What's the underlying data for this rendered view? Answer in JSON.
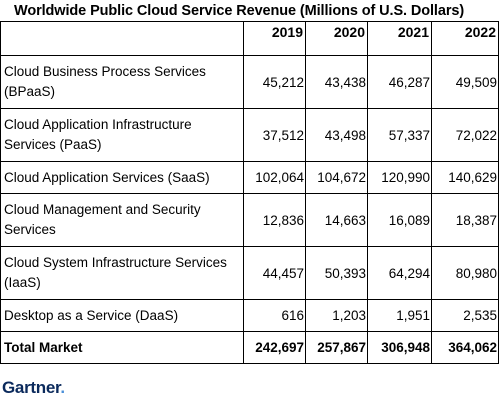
{
  "title": "Worldwide Public Cloud Service Revenue (Millions of U.S. Dollars)",
  "years": [
    "2019",
    "2020",
    "2021",
    "2022"
  ],
  "rows": [
    {
      "label": "Cloud Business Process Services (BPaaS)",
      "values": [
        "45,212",
        "43,438",
        "46,287",
        "49,509"
      ]
    },
    {
      "label": "Cloud Application Infrastructure Services (PaaS)",
      "values": [
        "37,512",
        "43,498",
        "57,337",
        "72,022"
      ]
    },
    {
      "label": "Cloud Application Services (SaaS)",
      "values": [
        "102,064",
        "104,672",
        "120,990",
        "140,629"
      ]
    },
    {
      "label": "Cloud Management and Security Services",
      "values": [
        "12,836",
        "14,663",
        "16,089",
        "18,387"
      ]
    },
    {
      "label": "Cloud System Infrastructure Services (IaaS)",
      "values": [
        "44,457",
        "50,393",
        "64,294",
        "80,980"
      ]
    },
    {
      "label": "Desktop as a Service (DaaS)",
      "values": [
        "616",
        "1,203",
        "1,951",
        "2,535"
      ]
    }
  ],
  "total": {
    "label": "Total Market",
    "values": [
      "242,697",
      "257,867",
      "306,948",
      "364,062"
    ]
  },
  "logo": {
    "text": "Gartner",
    "dot": "."
  }
}
